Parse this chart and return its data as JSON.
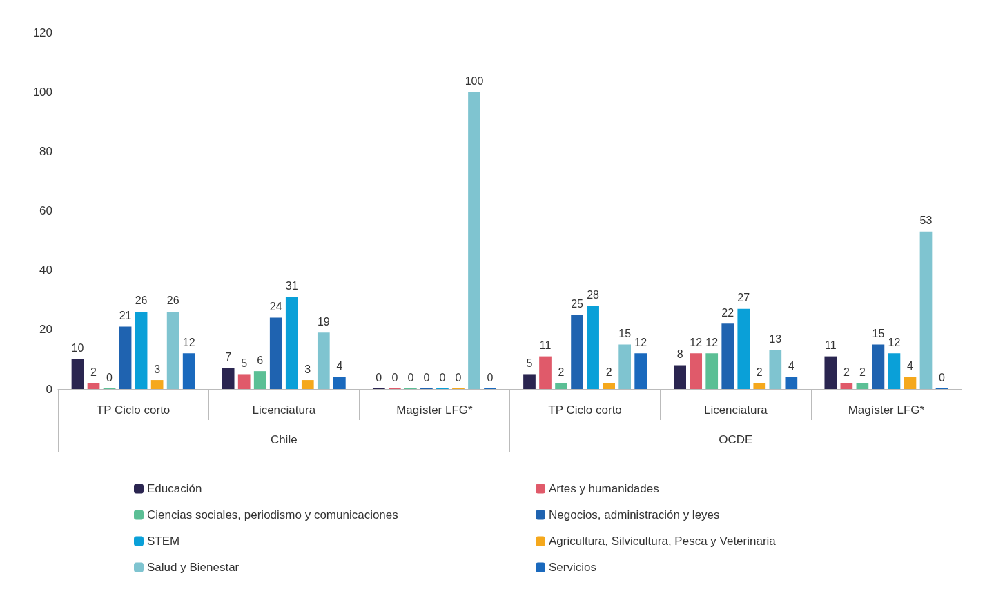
{
  "chart_data": {
    "type": "bar",
    "categories": [
      "TP Ciclo corto",
      "Licenciatura",
      "Magíster LFG*",
      "TP Ciclo corto",
      "Licenciatura",
      "Magíster LFG*"
    ],
    "annotations": [
      "Chile",
      "OCDE"
    ],
    "ylim": [
      0,
      120
    ],
    "yticks": [
      0,
      20,
      40,
      60,
      80,
      100,
      120
    ],
    "grid": false,
    "legend": "bottom",
    "data_labels": true,
    "series": [
      {
        "name": "Educación",
        "color": "#2a2550",
        "values": [
          10,
          7,
          0,
          5,
          8,
          11
        ]
      },
      {
        "name": "Artes y humanidades",
        "color": "#e05a6a",
        "values": [
          2,
          5,
          0,
          11,
          12,
          2
        ]
      },
      {
        "name": "Ciencias sociales, periodismo y comunicaciones",
        "color": "#5bbf95",
        "values": [
          0,
          6,
          0,
          2,
          12,
          2
        ]
      },
      {
        "name": "Negocios, administración y leyes",
        "color": "#1f63b0",
        "values": [
          21,
          24,
          0,
          25,
          22,
          15
        ]
      },
      {
        "name": "STEM",
        "color": "#0aa0d8",
        "values": [
          26,
          31,
          0,
          28,
          27,
          12
        ]
      },
      {
        "name": "Agricultura, Silvicultura, Pesca y Veterinaria",
        "color": "#f5a81c",
        "values": [
          3,
          3,
          0,
          2,
          2,
          4
        ]
      },
      {
        "name": "Salud y Bienestar",
        "color": "#7fc4d0",
        "values": [
          26,
          19,
          100,
          15,
          13,
          53
        ]
      },
      {
        "name": "Servicios",
        "color": "#1a69bd",
        "values": [
          12,
          4,
          0,
          12,
          4,
          0
        ]
      }
    ]
  }
}
